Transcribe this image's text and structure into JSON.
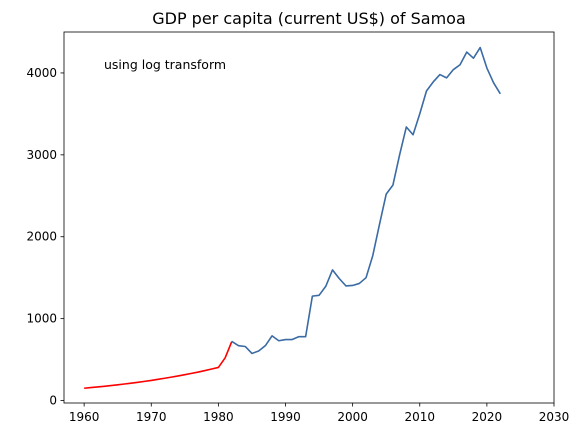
{
  "chart_data": {
    "type": "line",
    "title": "GDP per capita (current US$) of Samoa",
    "xlabel": "",
    "ylabel": "",
    "annotation": "using log transform",
    "xlim": [
      1957,
      2030
    ],
    "ylim": [
      -30,
      4500
    ],
    "xticks": [
      1960,
      1970,
      1980,
      1990,
      2000,
      2010,
      2020,
      2030
    ],
    "yticks": [
      0,
      1000,
      2000,
      3000,
      4000
    ],
    "grid": false,
    "legend": "none",
    "series": [
      {
        "color": "#ff0000",
        "x": [
          1960,
          1961,
          1962,
          1963,
          1964,
          1965,
          1966,
          1967,
          1968,
          1969,
          1970,
          1971,
          1972,
          1973,
          1974,
          1975,
          1976,
          1977,
          1978,
          1979,
          1980,
          1981,
          1982
        ],
        "values": [
          150,
          158,
          166,
          174,
          183,
          192,
          202,
          212,
          223,
          234,
          246,
          259,
          272,
          286,
          300,
          316,
          332,
          348,
          366,
          385,
          404,
          520,
          722
        ]
      },
      {
        "color": "#3a6ba5",
        "x": [
          1982,
          1983,
          1984,
          1985,
          1986,
          1987,
          1988,
          1989,
          1990,
          1991,
          1992,
          1993,
          1994,
          1995,
          1996,
          1997,
          1998,
          1999,
          2000,
          2001,
          2002,
          2003,
          2004,
          2005,
          2006,
          2007,
          2008,
          2009,
          2010,
          2011,
          2012,
          2013,
          2014,
          2015,
          2016,
          2017,
          2018,
          2019,
          2020,
          2021,
          2022
        ],
        "values": [
          722,
          670,
          660,
          575,
          605,
          670,
          790,
          730,
          745,
          745,
          780,
          780,
          1275,
          1285,
          1395,
          1595,
          1490,
          1400,
          1405,
          1430,
          1500,
          1770,
          2150,
          2520,
          2630,
          3000,
          3340,
          3245,
          3500,
          3780,
          3890,
          3980,
          3940,
          4040,
          4100,
          4255,
          4180,
          4310,
          4060,
          3880,
          3745
        ]
      }
    ]
  }
}
